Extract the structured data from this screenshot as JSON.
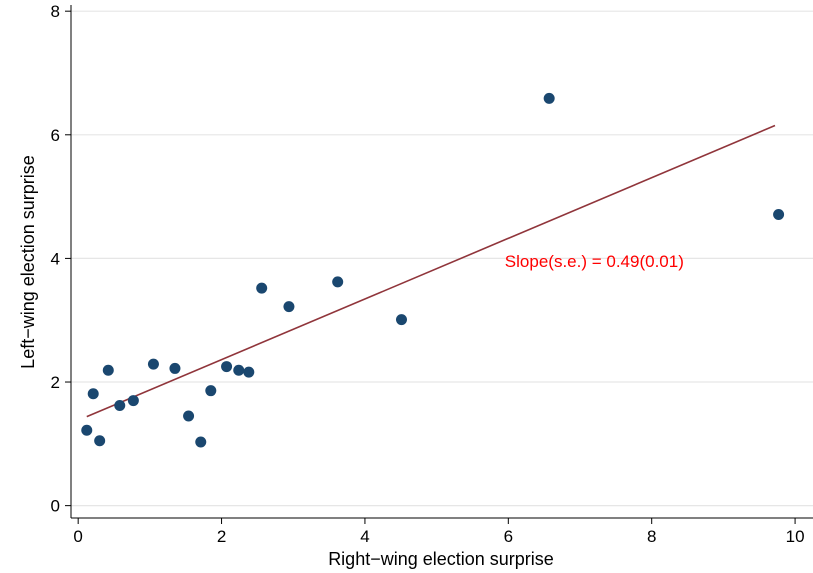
{
  "chart_data": {
    "type": "scatter",
    "xlabel": "Right−wing election surprise",
    "ylabel": "Left−wing election surprise",
    "xlim": [
      -0.1,
      10.25
    ],
    "ylim": [
      -0.2,
      8.1
    ],
    "xticks": [
      0,
      2,
      4,
      6,
      8,
      10
    ],
    "yticks": [
      0,
      2,
      4,
      6,
      8
    ],
    "grid": "horizontal",
    "legend": "none",
    "series": [
      {
        "marker_color": "#1a476f",
        "points": [
          {
            "x": 0.12,
            "y": 1.22
          },
          {
            "x": 0.21,
            "y": 1.81
          },
          {
            "x": 0.3,
            "y": 1.05
          },
          {
            "x": 0.42,
            "y": 2.19
          },
          {
            "x": 0.58,
            "y": 1.62
          },
          {
            "x": 0.77,
            "y": 1.7
          },
          {
            "x": 1.05,
            "y": 2.29
          },
          {
            "x": 1.35,
            "y": 2.22
          },
          {
            "x": 1.54,
            "y": 1.45
          },
          {
            "x": 1.71,
            "y": 1.03
          },
          {
            "x": 1.85,
            "y": 1.86
          },
          {
            "x": 2.07,
            "y": 2.25
          },
          {
            "x": 2.24,
            "y": 2.19
          },
          {
            "x": 2.38,
            "y": 2.16
          },
          {
            "x": 2.56,
            "y": 3.52
          },
          {
            "x": 2.94,
            "y": 3.22
          },
          {
            "x": 3.62,
            "y": 3.62
          },
          {
            "x": 4.51,
            "y": 3.01
          },
          {
            "x": 6.57,
            "y": 6.59
          },
          {
            "x": 9.77,
            "y": 4.71
          }
        ]
      }
    ],
    "fit_line": {
      "color": "#90353b",
      "x": [
        0.12,
        9.72
      ],
      "y": [
        1.44,
        6.15
      ]
    },
    "annotation": {
      "text": "Slope(s.e.) = 0.49(0.01)",
      "x": 7.2,
      "y": 3.96,
      "color": "#ff0000"
    },
    "colors": {
      "grid": "#e6e6e6",
      "axis": "#000000"
    }
  }
}
